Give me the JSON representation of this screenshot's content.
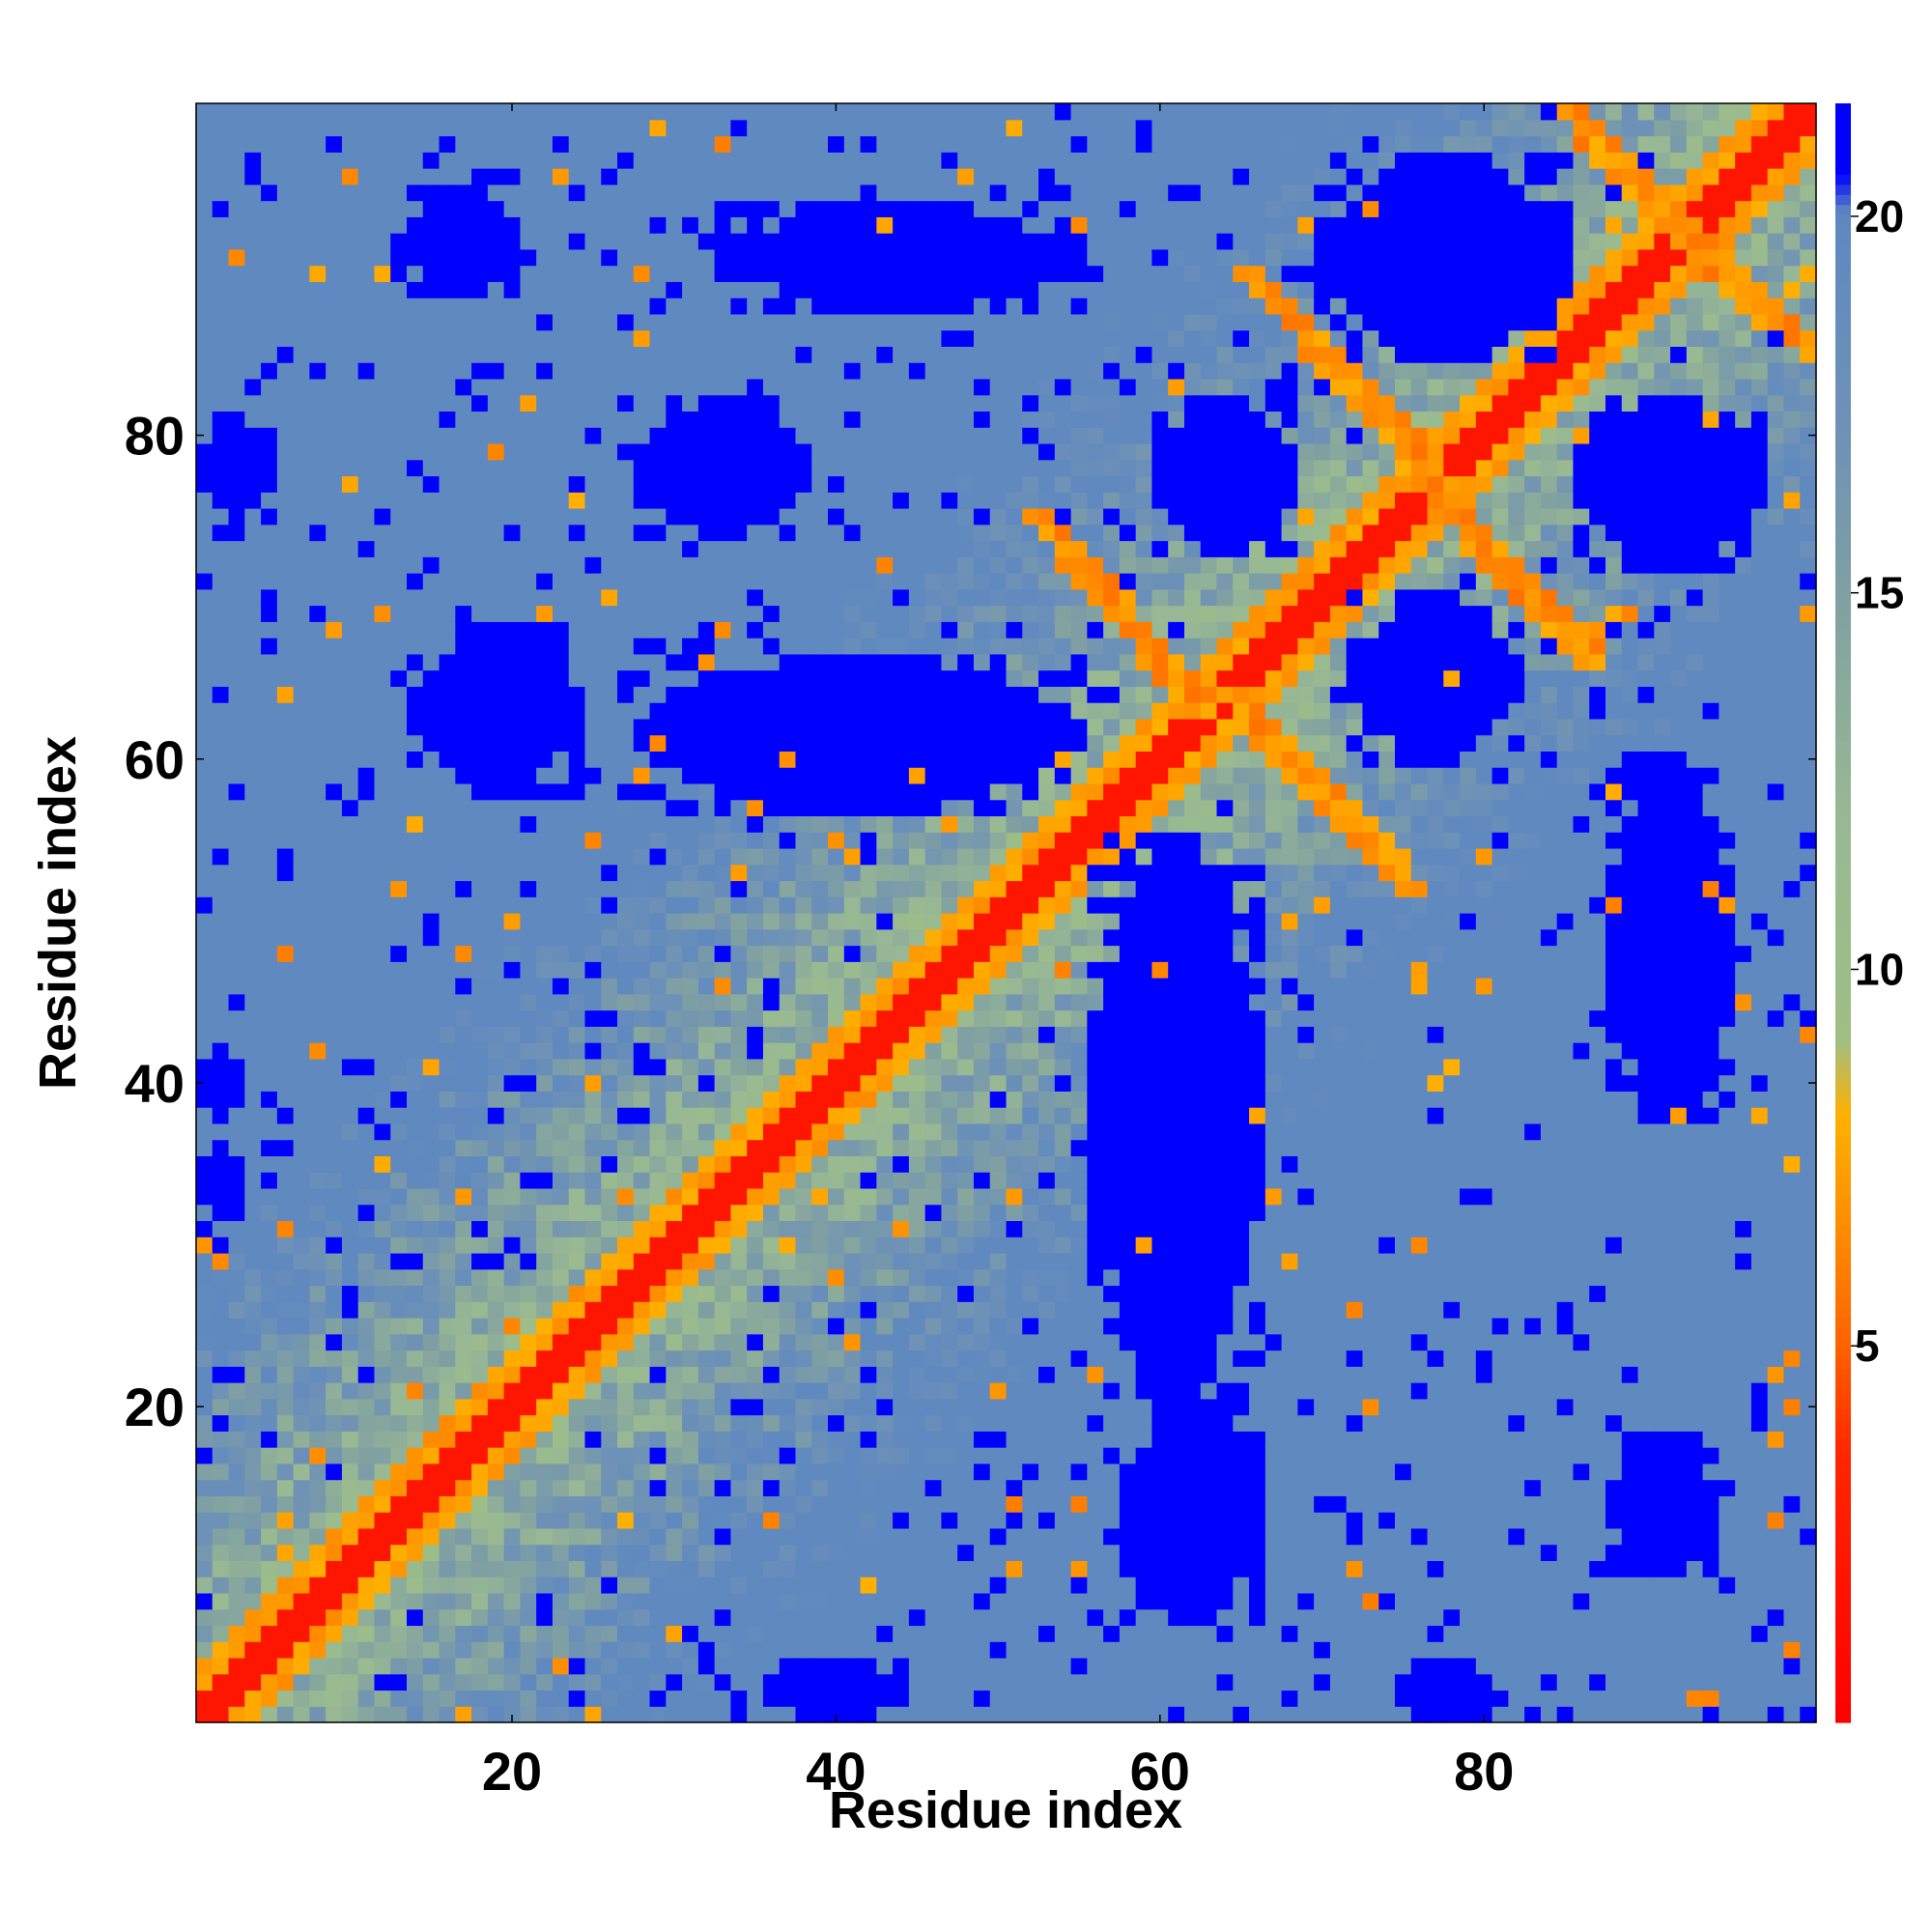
{
  "chart_data": {
    "type": "heatmap",
    "title": "",
    "xlabel": "Residue index",
    "ylabel": "Residue index",
    "n_residues": 100,
    "xlim": [
      1,
      100
    ],
    "ylim": [
      1,
      100
    ],
    "x_ticks": [
      {
        "value": 20,
        "label": "20"
      },
      {
        "value": 40,
        "label": "40"
      },
      {
        "value": 60,
        "label": "60"
      },
      {
        "value": 80,
        "label": "80"
      }
    ],
    "y_ticks": [
      {
        "value": 20,
        "label": "20"
      },
      {
        "value": 40,
        "label": "40"
      },
      {
        "value": 60,
        "label": "60"
      },
      {
        "value": 80,
        "label": "80"
      }
    ],
    "grid": false,
    "colorbar": {
      "range": [
        0,
        21.5
      ],
      "ticks": [
        {
          "value": 5,
          "label": "5"
        },
        {
          "value": 10,
          "label": "10"
        },
        {
          "value": 15,
          "label": "15"
        },
        {
          "value": 20,
          "label": "20"
        }
      ],
      "stops": [
        {
          "value": 0,
          "color": "#ff0000"
        },
        {
          "value": 3.5,
          "color": "#ff2600"
        },
        {
          "value": 5,
          "color": "#ff6400"
        },
        {
          "value": 7,
          "color": "#ff9800"
        },
        {
          "value": 8,
          "color": "#ffb000"
        },
        {
          "value": 9,
          "color": "#9fbf84"
        },
        {
          "value": 12,
          "color": "#98b894"
        },
        {
          "value": 15,
          "color": "#7f9fa3"
        },
        {
          "value": 17,
          "color": "#6f92b6"
        },
        {
          "value": 20,
          "color": "#5e88c0"
        },
        {
          "value": 20.5,
          "color": "#0000ff"
        },
        {
          "value": 21.5,
          "color": "#0000ff"
        }
      ]
    },
    "blue_blocks": [
      {
        "x": [
          14,
          24
        ],
        "y": [
          58,
          68
        ],
        "value": 21
      },
      {
        "x": [
          28,
          55
        ],
        "y": [
          57,
          66
        ],
        "value": 21
      },
      {
        "x": [
          60,
          68
        ],
        "y": [
          73,
          82
        ],
        "value": 21
      },
      {
        "x": [
          72,
          82
        ],
        "y": [
          60,
          70
        ],
        "value": 21
      },
      {
        "x": [
          86,
          97
        ],
        "y": [
          72,
          82
        ],
        "value": 21
      },
      {
        "x": [
          70,
          85
        ],
        "y": [
          85,
          97
        ],
        "value": 21
      },
      {
        "x": [
          33,
          55
        ],
        "y": [
          88,
          94
        ],
        "value": 21
      },
      {
        "x": [
          14,
          20
        ],
        "y": [
          89,
          95
        ],
        "value": 21
      },
      {
        "x": [
          56,
          66
        ],
        "y": [
          20,
          55
        ],
        "value": 21
      },
      {
        "x": [
          58,
          66
        ],
        "y": [
          7,
          20
        ],
        "value": 21
      },
      {
        "x": [
          88,
          95
        ],
        "y": [
          38,
          60
        ],
        "value": 21
      },
      {
        "x": [
          88,
          94
        ],
        "y": [
          10,
          18
        ],
        "value": 21
      },
      {
        "x": [
          1,
          5
        ],
        "y": [
          75,
          81
        ],
        "value": 21
      },
      {
        "x": [
          1,
          3
        ],
        "y": [
          38,
          42
        ],
        "value": 21
      },
      {
        "x": [
          1,
          3
        ],
        "y": [
          32,
          36
        ],
        "value": 21
      },
      {
        "x": [
          28,
          38
        ],
        "y": [
          74,
          82
        ],
        "value": 21
      },
      {
        "x": [
          36,
          44
        ],
        "y": [
          1,
          4
        ],
        "value": 21
      },
      {
        "x": [
          75,
          80
        ],
        "y": [
          1,
          4
        ],
        "value": 21
      }
    ],
    "orange_bands": [
      {
        "from": [
          62,
          63
        ],
        "to": [
          52,
          75
        ],
        "value": 7
      },
      {
        "from": [
          64,
          64
        ],
        "to": [
          75,
          52
        ],
        "value": 7
      },
      {
        "from": [
          78,
          76
        ],
        "to": [
          65,
          90
        ],
        "value": 7
      },
      {
        "from": [
          76,
          77
        ],
        "to": [
          86,
          66
        ],
        "value": 7
      },
      {
        "from": [
          85,
          100
        ],
        "to": [
          90,
          94
        ],
        "value": 7
      },
      {
        "from": [
          90,
          94
        ],
        "to": [
          100,
          85
        ],
        "value": 7
      }
    ]
  }
}
